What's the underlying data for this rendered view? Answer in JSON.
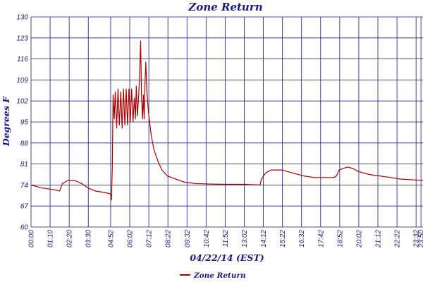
{
  "chart_data": {
    "type": "line",
    "title": "Zone Return",
    "xlabel": "04/22/14 (EST)",
    "ylabel": "Degrees F",
    "ylim": [
      60,
      130
    ],
    "yticks": [
      60,
      67,
      74,
      81,
      88,
      95,
      102,
      109,
      116,
      123,
      130
    ],
    "xlim": [
      0,
      1440
    ],
    "xtick_labels": [
      "00:00",
      "01:10",
      "02:20",
      "03:30",
      "04:52",
      "06:02",
      "07:12",
      "08:22",
      "09:32",
      "10:42",
      "11:52",
      "13:02",
      "14:12",
      "15:22",
      "16:32",
      "17:42",
      "18:52",
      "20:02",
      "21:12",
      "22:22",
      "23:32",
      "23:50"
    ],
    "xtick_minutes": [
      0,
      70,
      140,
      210,
      292,
      362,
      432,
      502,
      572,
      642,
      712,
      782,
      852,
      922,
      992,
      1062,
      1132,
      1202,
      1272,
      1342,
      1412,
      1430
    ],
    "grid": true,
    "legend_position": "bottom-left",
    "colors": {
      "series": "#aa0000",
      "axes": "#1a1a80"
    },
    "series": [
      {
        "name": "Zone Return",
        "points": [
          [
            0,
            74
          ],
          [
            40,
            73
          ],
          [
            80,
            72.5
          ],
          [
            105,
            72
          ],
          [
            115,
            74.5
          ],
          [
            135,
            75.5
          ],
          [
            160,
            75.5
          ],
          [
            185,
            74.5
          ],
          [
            210,
            73
          ],
          [
            235,
            72
          ],
          [
            270,
            71.5
          ],
          [
            292,
            71
          ],
          [
            295,
            69
          ],
          [
            298,
            80
          ],
          [
            301,
            104
          ],
          [
            305,
            96
          ],
          [
            309,
            105
          ],
          [
            314,
            93
          ],
          [
            319,
            106
          ],
          [
            324,
            94
          ],
          [
            329,
            105
          ],
          [
            334,
            93
          ],
          [
            339,
            106
          ],
          [
            344,
            94
          ],
          [
            349,
            106
          ],
          [
            354,
            94
          ],
          [
            359,
            106
          ],
          [
            364,
            95
          ],
          [
            369,
            106
          ],
          [
            374,
            95
          ],
          [
            379,
            103
          ],
          [
            383,
            96
          ],
          [
            386,
            107
          ],
          [
            390,
            97
          ],
          [
            395,
            104
          ],
          [
            398,
            110
          ],
          [
            402,
            122
          ],
          [
            405,
            104
          ],
          [
            409,
            96
          ],
          [
            412,
            104
          ],
          [
            415,
            96
          ],
          [
            418,
            108
          ],
          [
            421,
            115
          ],
          [
            425,
            105
          ],
          [
            430,
            99
          ],
          [
            440,
            91
          ],
          [
            450,
            86
          ],
          [
            465,
            82
          ],
          [
            480,
            79
          ],
          [
            500,
            77
          ],
          [
            530,
            76
          ],
          [
            560,
            75
          ],
          [
            600,
            74.5
          ],
          [
            660,
            74.3
          ],
          [
            720,
            74.2
          ],
          [
            780,
            74.2
          ],
          [
            840,
            74
          ],
          [
            845,
            76
          ],
          [
            860,
            78
          ],
          [
            880,
            79
          ],
          [
            920,
            79
          ],
          [
            960,
            78
          ],
          [
            1000,
            77
          ],
          [
            1040,
            76.5
          ],
          [
            1080,
            76.5
          ],
          [
            1110,
            76.5
          ],
          [
            1120,
            77
          ],
          [
            1130,
            79
          ],
          [
            1160,
            80
          ],
          [
            1180,
            79.5
          ],
          [
            1200,
            78.5
          ],
          [
            1240,
            77.5
          ],
          [
            1280,
            77
          ],
          [
            1320,
            76.5
          ],
          [
            1350,
            76
          ],
          [
            1440,
            75.5
          ]
        ]
      }
    ]
  }
}
